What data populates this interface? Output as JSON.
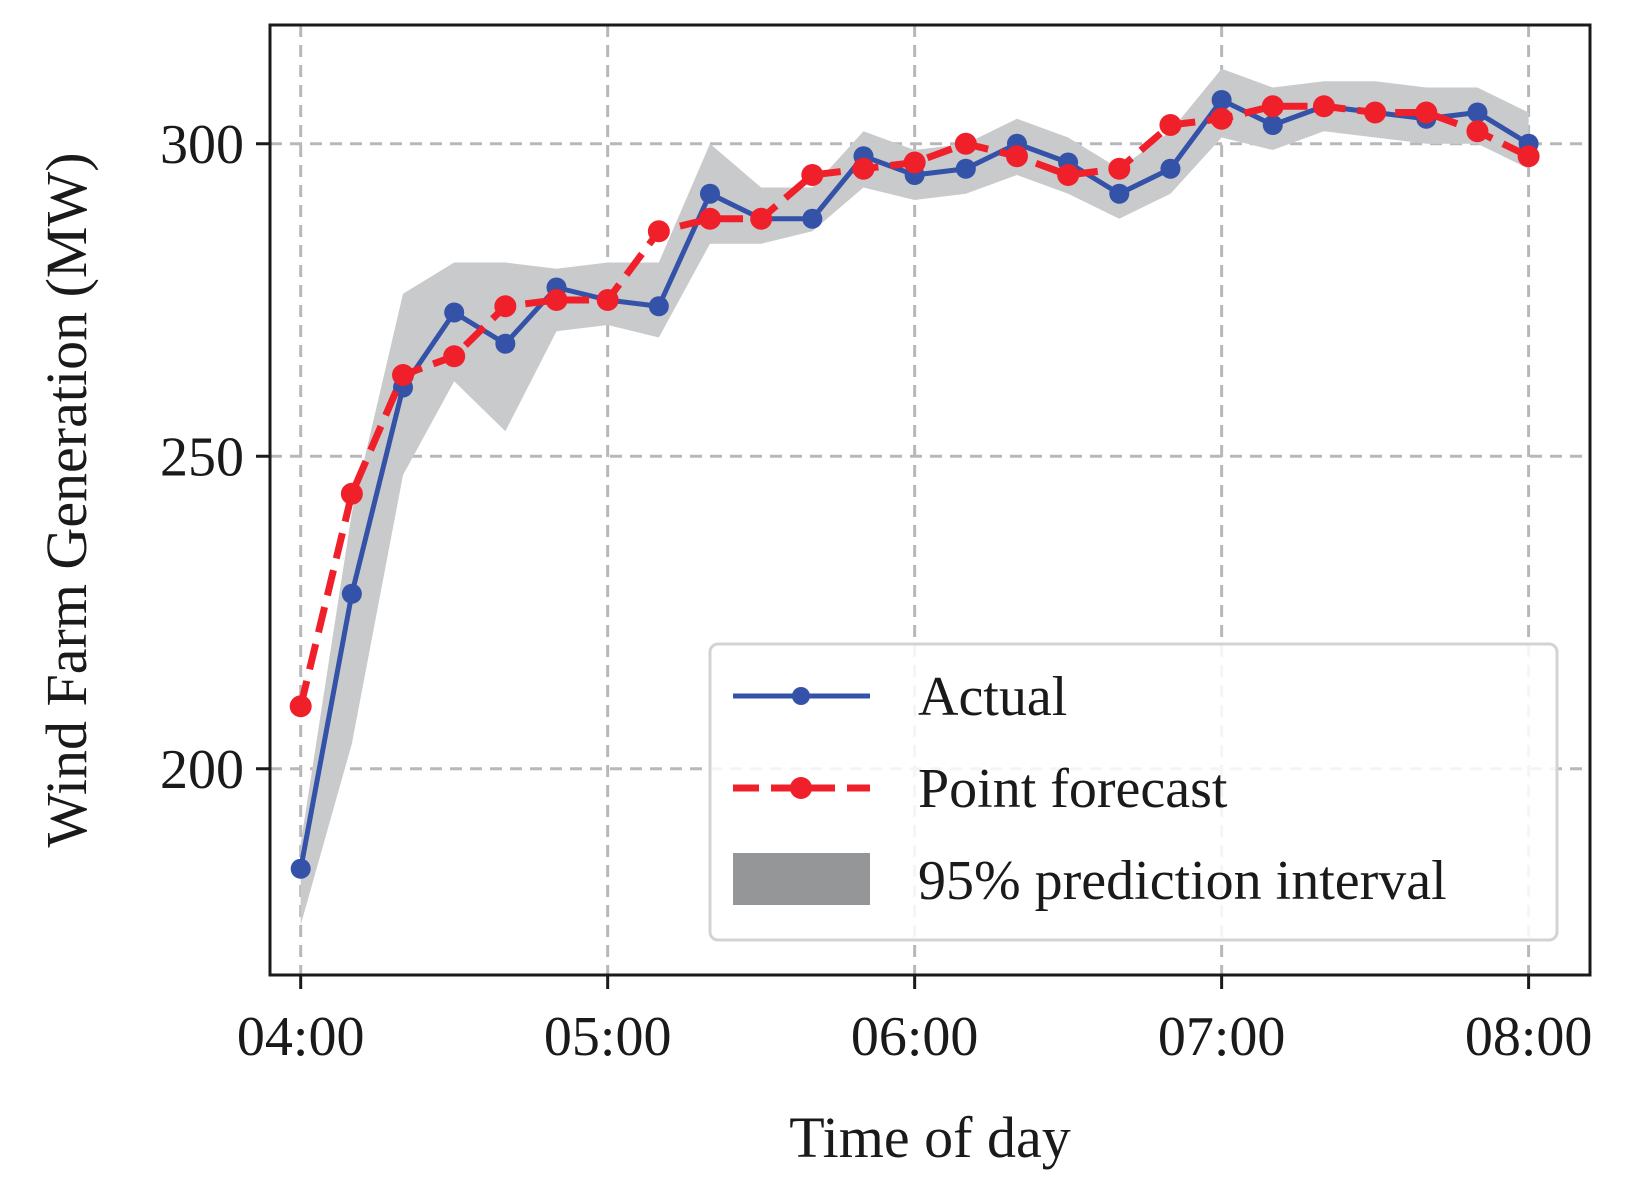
{
  "chart_data": {
    "type": "line",
    "title": "",
    "xlabel": "Time of day",
    "ylabel": "Wind Farm Generation (MW)",
    "x_minutes": [
      0,
      10,
      20,
      30,
      40,
      50,
      60,
      70,
      80,
      90,
      100,
      110,
      120,
      130,
      140,
      150,
      160,
      170,
      180,
      190,
      200,
      210,
      220,
      230,
      240
    ],
    "xlim": [
      -6,
      252
    ],
    "ylim": [
      167,
      319
    ],
    "x_ticks": [
      {
        "value": 0,
        "label": "04:00"
      },
      {
        "value": 60,
        "label": "05:00"
      },
      {
        "value": 120,
        "label": "06:00"
      },
      {
        "value": 180,
        "label": "07:00"
      },
      {
        "value": 240,
        "label": "08:00"
      }
    ],
    "y_ticks": [
      {
        "value": 200,
        "label": "200"
      },
      {
        "value": 250,
        "label": "250"
      },
      {
        "value": 300,
        "label": "300"
      }
    ],
    "grid": true,
    "legend_position": "lower-right",
    "series": [
      {
        "name": "Actual",
        "color": "#3352a8",
        "style": "solid",
        "marker": "circle",
        "values": [
          184,
          228,
          261,
          273,
          268,
          277,
          275,
          274,
          292,
          288,
          288,
          298,
          295,
          296,
          300,
          297,
          292,
          296,
          307,
          303,
          306,
          305,
          304,
          305,
          300
        ]
      },
      {
        "name": "Point forecast",
        "color": "#f0202a",
        "style": "dashed",
        "marker": "circle",
        "values": [
          210,
          244,
          263,
          266,
          274,
          275,
          275,
          286,
          288,
          288,
          295,
          296,
          297,
          300,
          298,
          295,
          296,
          303,
          304,
          306,
          306,
          305,
          305,
          302,
          298
        ]
      }
    ],
    "interval": {
      "name": "95% prediction interval",
      "color": "#c9cacc",
      "legend_color": "#959698",
      "lower": [
        175,
        204,
        247,
        262,
        254,
        270,
        271,
        269,
        284,
        284,
        286,
        293,
        291,
        292,
        295,
        292,
        288,
        292,
        301,
        299,
        302,
        301,
        300,
        300,
        296
      ],
      "upper": [
        188,
        241,
        276,
        281,
        281,
        280,
        281,
        281,
        300,
        293,
        293,
        302,
        299,
        300,
        304,
        301,
        296,
        302,
        312,
        309,
        310,
        310,
        309,
        309,
        305
      ]
    }
  }
}
